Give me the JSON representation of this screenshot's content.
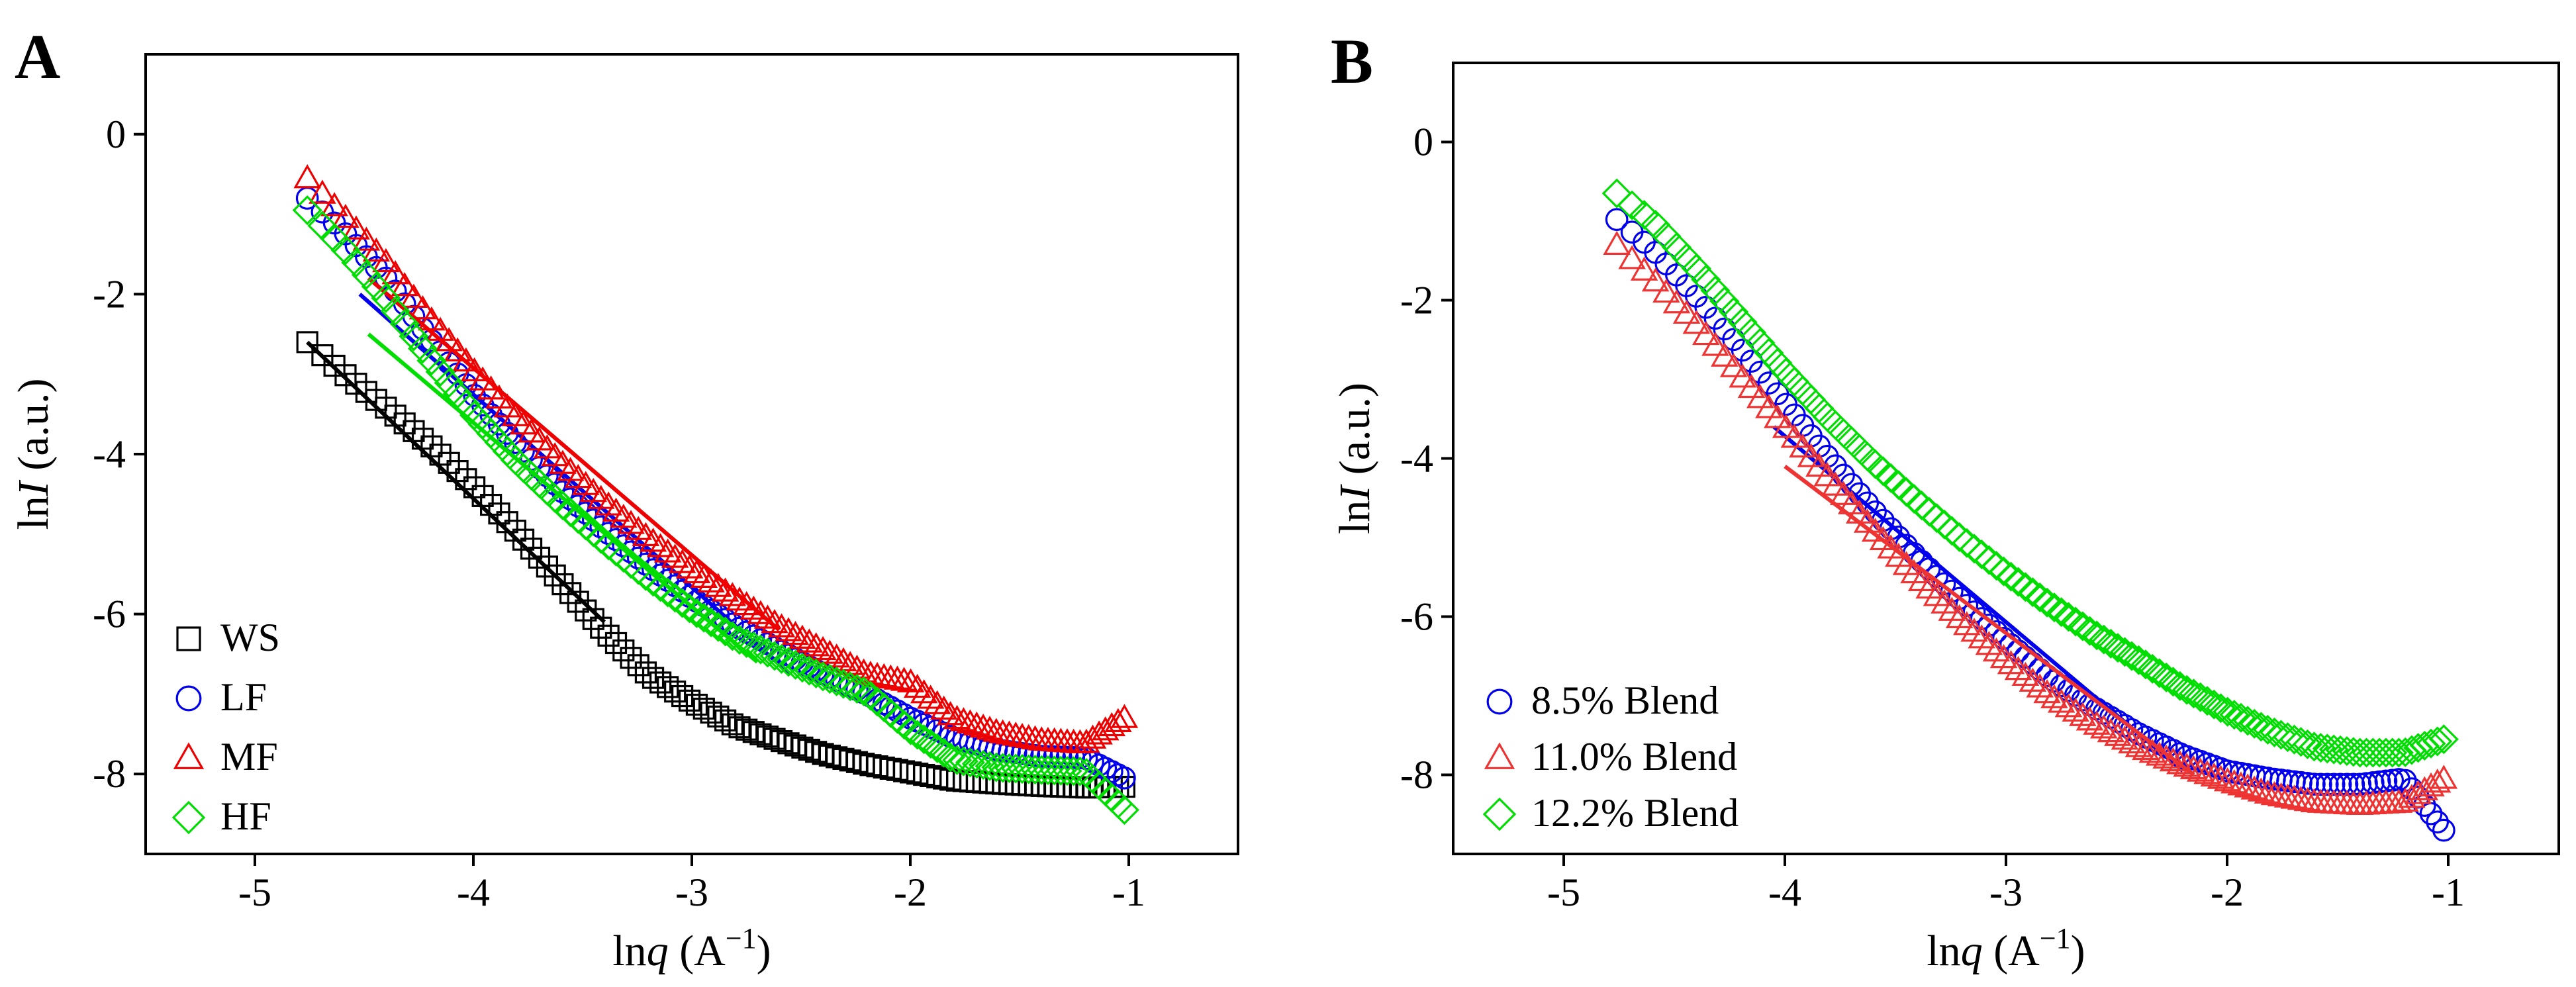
{
  "colors": {
    "WS": "#000000",
    "LF": "#0000ee",
    "MF": "#ee0000",
    "HF": "#00dd00",
    "blend85": "#0000ee",
    "blend110": "#ee3333",
    "blend122": "#00dd00"
  },
  "chart_data": [
    {
      "type": "scatter",
      "panel_label": "A",
      "xlabel_prefix": "ln",
      "xlabel_var": "q",
      "xlabel_suffix": " (A",
      "xlabel_exp": "−1",
      "xlabel_close": ")",
      "ylabel_prefix": "ln",
      "ylabel_var": "I",
      "ylabel_suffix": " (a.u.)",
      "xlim": [
        -5.5,
        -0.5
      ],
      "ylim": [
        -9,
        1
      ],
      "xticks": [
        -5,
        -4,
        -3,
        -2,
        -1
      ],
      "yticks": [
        0,
        -2,
        -4,
        -6,
        -8
      ],
      "legend_position": "bottom-left",
      "grid": false,
      "series": [
        {
          "name": "WS",
          "marker": "square",
          "color": "#000000",
          "points": [
            [
              -4.76,
              -2.6
            ],
            [
              -4.6,
              -2.98
            ],
            [
              -4.4,
              -3.42
            ],
            [
              -4.2,
              -3.88
            ],
            [
              -4.0,
              -4.4
            ],
            [
              -3.8,
              -4.98
            ],
            [
              -3.6,
              -5.6
            ],
            [
              -3.4,
              -6.22
            ],
            [
              -3.2,
              -6.76
            ],
            [
              -3.0,
              -7.1
            ],
            [
              -2.8,
              -7.4
            ],
            [
              -2.6,
              -7.58
            ],
            [
              -2.4,
              -7.75
            ],
            [
              -2.2,
              -7.88
            ],
            [
              -2.0,
              -7.98
            ],
            [
              -1.8,
              -8.08
            ],
            [
              -1.6,
              -8.12
            ],
            [
              -1.4,
              -8.15
            ],
            [
              -1.2,
              -8.17
            ],
            [
              -1.02,
              -8.16
            ]
          ],
          "fit": [
            [
              -4.76,
              -2.6
            ],
            [
              -3.4,
              -6.1
            ]
          ]
        },
        {
          "name": "LF",
          "marker": "circle",
          "color": "#0000ee",
          "points": [
            [
              -4.76,
              -0.8
            ],
            [
              -4.6,
              -1.2
            ],
            [
              -4.4,
              -1.8
            ],
            [
              -4.2,
              -2.55
            ],
            [
              -4.0,
              -3.25
            ],
            [
              -3.8,
              -3.88
            ],
            [
              -3.6,
              -4.45
            ],
            [
              -3.4,
              -4.95
            ],
            [
              -3.2,
              -5.4
            ],
            [
              -3.0,
              -5.8
            ],
            [
              -2.8,
              -6.15
            ],
            [
              -2.6,
              -6.45
            ],
            [
              -2.4,
              -6.75
            ],
            [
              -2.2,
              -7.0
            ],
            [
              -2.0,
              -7.3
            ],
            [
              -1.8,
              -7.55
            ],
            [
              -1.6,
              -7.7
            ],
            [
              -1.4,
              -7.78
            ],
            [
              -1.2,
              -7.8
            ],
            [
              -1.02,
              -8.05
            ]
          ],
          "fit": [
            [
              -4.52,
              -2.0
            ],
            [
              -2.55,
              -6.75
            ]
          ]
        },
        {
          "name": "MF",
          "marker": "triangle",
          "color": "#ee0000",
          "points": [
            [
              -4.76,
              -0.55
            ],
            [
              -4.6,
              -1.0
            ],
            [
              -4.4,
              -1.6
            ],
            [
              -4.2,
              -2.3
            ],
            [
              -4.0,
              -2.95
            ],
            [
              -3.8,
              -3.55
            ],
            [
              -3.6,
              -4.1
            ],
            [
              -3.4,
              -4.6
            ],
            [
              -3.2,
              -5.05
            ],
            [
              -3.0,
              -5.45
            ],
            [
              -2.8,
              -5.8
            ],
            [
              -2.6,
              -6.15
            ],
            [
              -2.4,
              -6.45
            ],
            [
              -2.2,
              -6.75
            ],
            [
              -2.0,
              -6.85
            ],
            [
              -1.8,
              -7.3
            ],
            [
              -1.6,
              -7.48
            ],
            [
              -1.4,
              -7.58
            ],
            [
              -1.2,
              -7.62
            ],
            [
              -1.02,
              -7.3
            ]
          ],
          "fit": [
            [
              -4.48,
              -1.8
            ],
            [
              -2.6,
              -6.2
            ]
          ]
        },
        {
          "name": "HF",
          "marker": "diamond",
          "color": "#00dd00",
          "points": [
            [
              -4.76,
              -0.95
            ],
            [
              -4.6,
              -1.4
            ],
            [
              -4.4,
              -2.05
            ],
            [
              -4.2,
              -2.8
            ],
            [
              -4.0,
              -3.5
            ],
            [
              -3.8,
              -4.1
            ],
            [
              -3.6,
              -4.62
            ],
            [
              -3.4,
              -5.1
            ],
            [
              -3.2,
              -5.55
            ],
            [
              -3.0,
              -5.95
            ],
            [
              -2.8,
              -6.3
            ],
            [
              -2.6,
              -6.55
            ],
            [
              -2.4,
              -6.78
            ],
            [
              -2.2,
              -6.98
            ],
            [
              -2.0,
              -7.45
            ],
            [
              -1.8,
              -7.82
            ],
            [
              -1.6,
              -7.92
            ],
            [
              -1.4,
              -7.95
            ],
            [
              -1.2,
              -7.97
            ],
            [
              -1.02,
              -8.45
            ]
          ],
          "fit": [
            [
              -4.48,
              -2.5
            ],
            [
              -2.7,
              -6.6
            ]
          ]
        }
      ]
    },
    {
      "type": "scatter",
      "panel_label": "B",
      "xlabel_prefix": "ln",
      "xlabel_var": "q",
      "xlabel_suffix": " (A",
      "xlabel_exp": "−1",
      "xlabel_close": ")",
      "ylabel_prefix": "ln",
      "ylabel_var": "I",
      "ylabel_suffix": " (a.u.)",
      "xlim": [
        -5.5,
        -0.5
      ],
      "ylim": [
        -9,
        1
      ],
      "xticks": [
        -5,
        -4,
        -3,
        -2,
        -1
      ],
      "yticks": [
        0,
        -2,
        -4,
        -6,
        -8
      ],
      "legend_position": "bottom-left",
      "grid": false,
      "series": [
        {
          "name": "8.5% Blend",
          "marker": "circle",
          "color": "#0000ee",
          "points": [
            [
              -4.76,
              -0.98
            ],
            [
              -4.6,
              -1.35
            ],
            [
              -4.4,
              -1.95
            ],
            [
              -4.2,
              -2.6
            ],
            [
              -4.0,
              -3.3
            ],
            [
              -3.8,
              -4.0
            ],
            [
              -3.6,
              -4.65
            ],
            [
              -3.4,
              -5.25
            ],
            [
              -3.2,
              -5.8
            ],
            [
              -3.0,
              -6.3
            ],
            [
              -2.8,
              -6.78
            ],
            [
              -2.6,
              -7.15
            ],
            [
              -2.4,
              -7.48
            ],
            [
              -2.2,
              -7.75
            ],
            [
              -2.0,
              -7.95
            ],
            [
              -1.8,
              -8.05
            ],
            [
              -1.6,
              -8.12
            ],
            [
              -1.4,
              -8.12
            ],
            [
              -1.2,
              -8.05
            ],
            [
              -1.02,
              -8.7
            ]
          ],
          "fit": [
            [
              -4.05,
              -3.6
            ],
            [
              -2.2,
              -7.95
            ]
          ]
        },
        {
          "name": "11.0% Blend",
          "marker": "triangle",
          "color": "#ee3333",
          "points": [
            [
              -4.76,
              -1.3
            ],
            [
              -4.6,
              -1.72
            ],
            [
              -4.4,
              -2.3
            ],
            [
              -4.2,
              -2.95
            ],
            [
              -4.0,
              -3.6
            ],
            [
              -3.8,
              -4.25
            ],
            [
              -3.6,
              -4.9
            ],
            [
              -3.4,
              -5.5
            ],
            [
              -3.2,
              -6.05
            ],
            [
              -3.0,
              -6.55
            ],
            [
              -2.8,
              -7.0
            ],
            [
              -2.6,
              -7.35
            ],
            [
              -2.4,
              -7.65
            ],
            [
              -2.2,
              -7.88
            ],
            [
              -2.0,
              -8.08
            ],
            [
              -1.8,
              -8.25
            ],
            [
              -1.6,
              -8.35
            ],
            [
              -1.4,
              -8.38
            ],
            [
              -1.2,
              -8.35
            ],
            [
              -1.02,
              -8.05
            ]
          ],
          "fit": [
            [
              -4.0,
              -4.1
            ],
            [
              -2.15,
              -8.0
            ]
          ]
        },
        {
          "name": "12.2% Blend",
          "marker": "diamond",
          "color": "#00dd00",
          "points": [
            [
              -4.76,
              -0.65
            ],
            [
              -4.6,
              -1.0
            ],
            [
              -4.4,
              -1.6
            ],
            [
              -4.2,
              -2.25
            ],
            [
              -4.0,
              -2.9
            ],
            [
              -3.8,
              -3.5
            ],
            [
              -3.6,
              -4.05
            ],
            [
              -3.4,
              -4.55
            ],
            [
              -3.2,
              -5.02
            ],
            [
              -3.0,
              -5.45
            ],
            [
              -2.8,
              -5.85
            ],
            [
              -2.6,
              -6.22
            ],
            [
              -2.4,
              -6.55
            ],
            [
              -2.2,
              -6.9
            ],
            [
              -2.0,
              -7.2
            ],
            [
              -1.8,
              -7.45
            ],
            [
              -1.6,
              -7.65
            ],
            [
              -1.4,
              -7.72
            ],
            [
              -1.2,
              -7.72
            ],
            [
              -1.02,
              -7.55
            ]
          ],
          "fit": []
        }
      ]
    }
  ]
}
